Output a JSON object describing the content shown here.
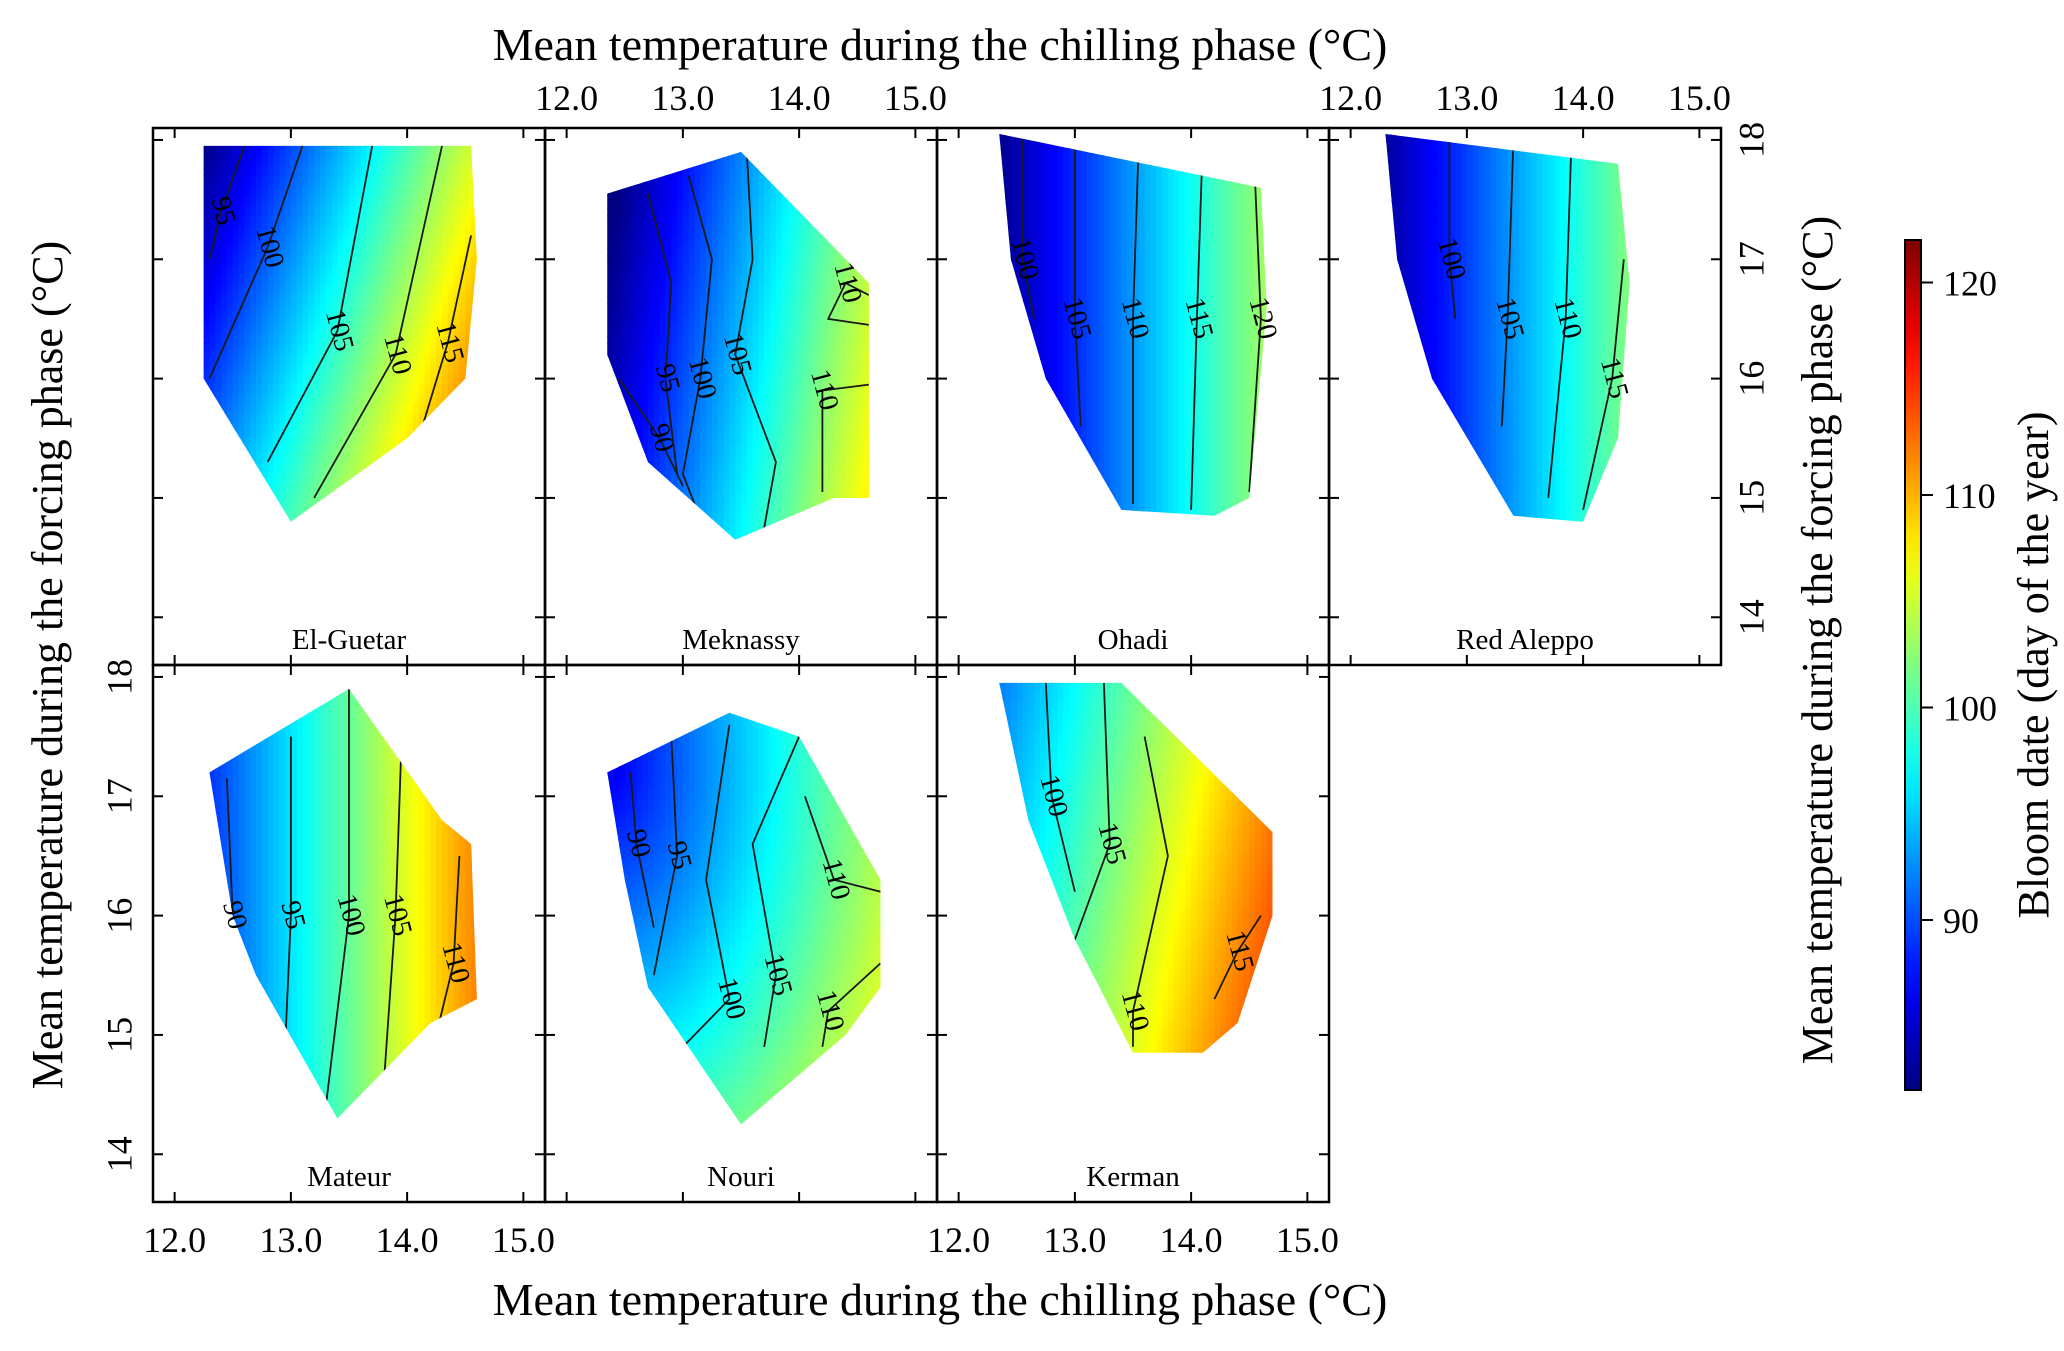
{
  "chart_data": {
    "type": "heatmap",
    "description_axis": {
      "x_label": "Mean temperature during the chilling phase (°C)",
      "y_label": "Mean temperature during the forcing phase (°C)",
      "x_ticks": [
        "12.0",
        "13.0",
        "14.0",
        "15.0"
      ],
      "y_ticks": [
        "14",
        "15",
        "16",
        "17",
        "18"
      ],
      "xlim": [
        11.9,
        15.1
      ],
      "ylim": [
        13.6,
        18.1
      ]
    },
    "colorbar": {
      "label": "Bloom date (day of the year)",
      "ticks": [
        "90",
        "100",
        "110",
        "120"
      ],
      "range": [
        82,
        122
      ]
    },
    "panels": [
      {
        "name": "El-Guetar",
        "hull": [
          [
            12.25,
            17.95
          ],
          [
            14.55,
            17.95
          ],
          [
            14.6,
            17.0
          ],
          [
            14.5,
            16.0
          ],
          [
            14.0,
            15.5
          ],
          [
            13.0,
            14.8
          ],
          [
            12.25,
            16.0
          ]
        ],
        "model": {
          "type": "linear",
          "a": 10,
          "b": -3.2,
          "c": 101
        },
        "contours": [
          {
            "label": "95",
            "pts": [
              [
                12.3,
                17.0
              ],
              [
                12.4,
                17.4
              ],
              [
                12.6,
                17.95
              ]
            ]
          },
          {
            "label": "100",
            "pts": [
              [
                12.3,
                16.0
              ],
              [
                12.8,
                17.1
              ],
              [
                13.1,
                17.95
              ]
            ]
          },
          {
            "label": "105",
            "pts": [
              [
                12.8,
                15.3
              ],
              [
                13.4,
                16.4
              ],
              [
                13.7,
                17.95
              ]
            ]
          },
          {
            "label": "110",
            "pts": [
              [
                13.2,
                15.0
              ],
              [
                13.9,
                16.2
              ],
              [
                14.3,
                17.95
              ]
            ]
          },
          {
            "label": "115",
            "pts": [
              [
                14.1,
                15.5
              ],
              [
                14.35,
                16.3
              ],
              [
                14.55,
                17.2
              ]
            ]
          }
        ]
      },
      {
        "name": "Meknassy",
        "hull": [
          [
            12.35,
            17.55
          ],
          [
            13.5,
            17.9
          ],
          [
            14.6,
            16.8
          ],
          [
            14.6,
            15.0
          ],
          [
            14.3,
            15.0
          ],
          [
            13.45,
            14.65
          ],
          [
            12.7,
            15.3
          ],
          [
            12.35,
            16.2
          ]
        ],
        "model": {
          "type": "linear",
          "a": 10,
          "b": -1.5,
          "c": 95
        },
        "contours": [
          {
            "label": "90",
            "pts": [
              [
                12.45,
                16.0
              ],
              [
                12.8,
                15.5
              ],
              [
                13.0,
                15.1
              ]
            ]
          },
          {
            "label": "95",
            "pts": [
              [
                12.7,
                17.55
              ],
              [
                12.9,
                16.8
              ],
              [
                12.85,
                16.0
              ],
              [
                12.95,
                15.2
              ]
            ]
          },
          {
            "label": "100",
            "pts": [
              [
                13.05,
                17.7
              ],
              [
                13.25,
                17.0
              ],
              [
                13.15,
                16.0
              ],
              [
                13.0,
                15.2
              ],
              [
                13.1,
                14.95
              ]
            ]
          },
          {
            "label": "105",
            "pts": [
              [
                13.55,
                17.9
              ],
              [
                13.6,
                17.0
              ],
              [
                13.45,
                16.2
              ],
              [
                13.8,
                15.3
              ],
              [
                13.7,
                14.75
              ]
            ]
          },
          {
            "label": "110",
            "pts": [
              [
                14.2,
                15.05
              ],
              [
                14.2,
                15.9
              ],
              [
                14.6,
                15.95
              ]
            ]
          },
          {
            "label": "110",
            "pts": [
              [
                14.6,
                16.45
              ],
              [
                14.25,
                16.5
              ],
              [
                14.4,
                16.8
              ],
              [
                14.6,
                16.7
              ]
            ]
          }
        ]
      },
      {
        "name": "Ohadi",
        "hull": [
          [
            12.35,
            18.05
          ],
          [
            14.6,
            17.6
          ],
          [
            14.65,
            16.6
          ],
          [
            14.5,
            15.0
          ],
          [
            14.2,
            14.85
          ],
          [
            13.4,
            14.9
          ],
          [
            12.75,
            16.0
          ],
          [
            12.45,
            17.0
          ]
        ],
        "model": {
          "type": "linear",
          "a": 9,
          "b": 0,
          "c": 93
        },
        "contours": [
          {
            "label": "100",
            "pts": [
              [
                12.55,
                18.0
              ],
              [
                12.55,
                17.0
              ],
              [
                12.65,
                16.5
              ]
            ]
          },
          {
            "label": "105",
            "pts": [
              [
                13.0,
                18.0
              ],
              [
                13.0,
                16.5
              ],
              [
                13.05,
                15.6
              ]
            ]
          },
          {
            "label": "110",
            "pts": [
              [
                13.55,
                18.0
              ],
              [
                13.5,
                16.5
              ],
              [
                13.5,
                14.95
              ]
            ]
          },
          {
            "label": "115",
            "pts": [
              [
                14.1,
                18.0
              ],
              [
                14.05,
                16.5
              ],
              [
                14.0,
                14.9
              ]
            ]
          },
          {
            "label": "120",
            "pts": [
              [
                14.55,
                17.65
              ],
              [
                14.6,
                16.5
              ],
              [
                14.5,
                15.05
              ]
            ]
          }
        ]
      },
      {
        "name": "Red Aleppo",
        "hull": [
          [
            12.3,
            18.05
          ],
          [
            14.3,
            17.8
          ],
          [
            14.4,
            16.8
          ],
          [
            14.3,
            15.5
          ],
          [
            14.0,
            14.8
          ],
          [
            13.4,
            14.85
          ],
          [
            12.7,
            16.0
          ],
          [
            12.4,
            17.0
          ]
        ],
        "model": {
          "type": "linear",
          "a": 9,
          "b": 0,
          "c": 94
        },
        "contours": [
          {
            "label": "100",
            "pts": [
              [
                12.85,
                18.0
              ],
              [
                12.85,
                17.0
              ],
              [
                12.9,
                16.5
              ]
            ]
          },
          {
            "label": "105",
            "pts": [
              [
                13.4,
                18.0
              ],
              [
                13.35,
                16.5
              ],
              [
                13.3,
                15.6
              ]
            ]
          },
          {
            "label": "110",
            "pts": [
              [
                13.9,
                18.0
              ],
              [
                13.85,
                16.5
              ],
              [
                13.7,
                15.0
              ]
            ]
          },
          {
            "label": "115",
            "pts": [
              [
                14.35,
                17.0
              ],
              [
                14.25,
                16.0
              ],
              [
                14.0,
                14.9
              ]
            ]
          }
        ]
      },
      {
        "name": "Mateur",
        "hull": [
          [
            12.3,
            17.2
          ],
          [
            13.5,
            17.9
          ],
          [
            14.3,
            16.8
          ],
          [
            14.55,
            16.6
          ],
          [
            14.6,
            15.3
          ],
          [
            14.2,
            15.1
          ],
          [
            13.4,
            14.3
          ],
          [
            12.7,
            15.5
          ],
          [
            12.5,
            16.0
          ]
        ],
        "model": {
          "type": "linear",
          "a": 10,
          "b": 0,
          "c": 101
        },
        "contours": [
          {
            "label": "90",
            "pts": [
              [
                12.45,
                17.15
              ],
              [
                12.5,
                16.0
              ],
              [
                12.6,
                15.5
              ]
            ]
          },
          {
            "label": "95",
            "pts": [
              [
                13.0,
                17.5
              ],
              [
                13.0,
                16.0
              ],
              [
                12.95,
                14.9
              ]
            ]
          },
          {
            "label": "100",
            "pts": [
              [
                13.5,
                17.9
              ],
              [
                13.5,
                16.0
              ],
              [
                13.3,
                14.4
              ]
            ]
          },
          {
            "label": "105",
            "pts": [
              [
                13.95,
                17.4
              ],
              [
                13.9,
                16.0
              ],
              [
                13.8,
                14.6
              ]
            ]
          },
          {
            "label": "110",
            "pts": [
              [
                14.45,
                16.5
              ],
              [
                14.4,
                15.6
              ],
              [
                14.25,
                15.0
              ]
            ]
          }
        ]
      },
      {
        "name": "Nouri",
        "hull": [
          [
            12.35,
            17.2
          ],
          [
            13.4,
            17.7
          ],
          [
            14.0,
            17.5
          ],
          [
            14.7,
            16.3
          ],
          [
            14.7,
            15.4
          ],
          [
            14.4,
            15.0
          ],
          [
            13.5,
            14.25
          ],
          [
            12.7,
            15.4
          ],
          [
            12.5,
            16.3
          ]
        ],
        "model": {
          "type": "radial",
          "cx": 12.35,
          "cy": 17.3,
          "k": 7.6,
          "base": 86
        },
        "contours": [
          {
            "label": "90",
            "pts": [
              [
                12.55,
                17.2
              ],
              [
                12.6,
                16.6
              ],
              [
                12.75,
                15.9
              ]
            ]
          },
          {
            "label": "95",
            "pts": [
              [
                12.9,
                17.5
              ],
              [
                12.95,
                16.5
              ],
              [
                12.75,
                15.5
              ]
            ]
          },
          {
            "label": "100",
            "pts": [
              [
                13.4,
                17.6
              ],
              [
                13.2,
                16.3
              ],
              [
                13.4,
                15.3
              ],
              [
                13.0,
                14.9
              ]
            ]
          },
          {
            "label": "105",
            "pts": [
              [
                14.0,
                17.5
              ],
              [
                13.6,
                16.6
              ],
              [
                13.8,
                15.5
              ],
              [
                13.7,
                14.9
              ]
            ]
          },
          {
            "label": "110",
            "pts": [
              [
                14.05,
                17.0
              ],
              [
                14.3,
                16.3
              ],
              [
                14.7,
                16.2
              ]
            ]
          },
          {
            "label": "110",
            "pts": [
              [
                14.7,
                15.6
              ],
              [
                14.25,
                15.2
              ],
              [
                14.2,
                14.9
              ]
            ]
          }
        ]
      },
      {
        "name": "Kerman",
        "hull": [
          [
            12.35,
            17.95
          ],
          [
            13.4,
            17.95
          ],
          [
            14.7,
            16.7
          ],
          [
            14.7,
            16.0
          ],
          [
            14.4,
            15.1
          ],
          [
            14.1,
            14.85
          ],
          [
            13.5,
            14.85
          ],
          [
            13.0,
            15.8
          ],
          [
            12.6,
            16.8
          ]
        ],
        "model": {
          "type": "linear",
          "a": 8,
          "b": -1.5,
          "c": 104
        },
        "contours": [
          {
            "label": "100",
            "pts": [
              [
                12.75,
                17.95
              ],
              [
                12.8,
                17.0
              ],
              [
                13.0,
                16.2
              ]
            ]
          },
          {
            "label": "105",
            "pts": [
              [
                13.25,
                17.95
              ],
              [
                13.3,
                16.6
              ],
              [
                13.0,
                15.8
              ]
            ]
          },
          {
            "label": "110",
            "pts": [
              [
                13.6,
                17.5
              ],
              [
                13.8,
                16.5
              ],
              [
                13.5,
                15.2
              ],
              [
                13.5,
                14.9
              ]
            ]
          },
          {
            "label": "115",
            "pts": [
              [
                14.2,
                15.3
              ],
              [
                14.4,
                15.7
              ],
              [
                14.6,
                16.0
              ]
            ]
          }
        ]
      }
    ]
  }
}
